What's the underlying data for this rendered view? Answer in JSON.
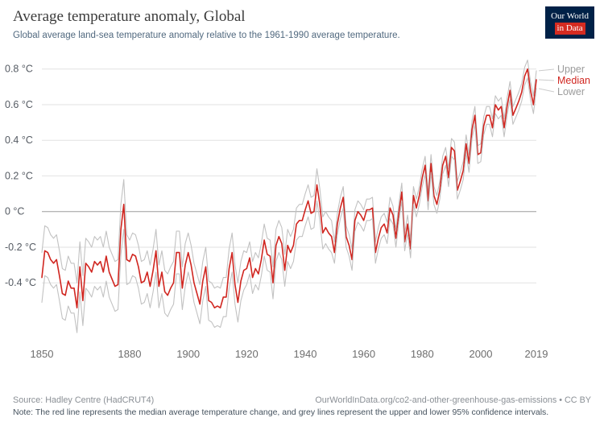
{
  "header": {
    "title": "Average temperature anomaly, Global",
    "subtitle": "Global average land-sea temperature anomaly relative to the 1961-1990 average temperature.",
    "logo": {
      "line1": "Our World",
      "line2": "in Data",
      "bg": "#002147",
      "accent": "#d42b21"
    }
  },
  "footer": {
    "source": "Source: Hadley Centre (HadCRUT4)",
    "attribution": "OurWorldInData.org/co2-and-other-greenhouse-gas-emissions • CC BY",
    "note": "Note: The red line represents the median average temperature change, and grey lines represent the upper and lower 95% confidence intervals."
  },
  "chart_data": {
    "type": "line",
    "title": "Average temperature anomaly, Global",
    "xlabel": "",
    "ylabel": "",
    "grid": true,
    "legend_position": "right",
    "xlim": [
      1850,
      2019
    ],
    "ylim": [
      -0.72,
      0.88
    ],
    "x_ticks": [
      1850,
      1880,
      1900,
      1920,
      1940,
      1960,
      1980,
      2000,
      2019
    ],
    "y_ticks": [
      {
        "value": 0.8,
        "label": "0.8 °C"
      },
      {
        "value": 0.6,
        "label": "0.6 °C"
      },
      {
        "value": 0.4,
        "label": "0.4 °C"
      },
      {
        "value": 0.2,
        "label": "0.2 °C"
      },
      {
        "value": 0,
        "label": "0 °C"
      },
      {
        "value": -0.2,
        "label": "-0.2 °C"
      },
      {
        "value": -0.4,
        "label": "-0.4 °C"
      }
    ],
    "x_start": 1850,
    "series": [
      {
        "name": "Upper",
        "color": "#c2c2c2",
        "label_color": "#9b9b9b",
        "values": [
          -0.23,
          -0.08,
          -0.09,
          -0.13,
          -0.15,
          -0.13,
          -0.22,
          -0.32,
          -0.33,
          -0.25,
          -0.29,
          -0.29,
          -0.4,
          -0.17,
          -0.36,
          -0.15,
          -0.17,
          -0.2,
          -0.14,
          -0.16,
          -0.14,
          -0.2,
          -0.11,
          -0.2,
          -0.24,
          -0.28,
          -0.27,
          0.04,
          0.18,
          -0.13,
          -0.16,
          -0.12,
          -0.13,
          -0.19,
          -0.28,
          -0.27,
          -0.22,
          -0.3,
          -0.21,
          -0.1,
          -0.3,
          -0.22,
          -0.33,
          -0.35,
          -0.31,
          -0.28,
          -0.11,
          -0.11,
          -0.31,
          -0.18,
          -0.12,
          -0.19,
          -0.29,
          -0.35,
          -0.41,
          -0.28,
          -0.2,
          -0.39,
          -0.4,
          -0.43,
          -0.42,
          -0.43,
          -0.37,
          -0.37,
          -0.21,
          -0.12,
          -0.3,
          -0.4,
          -0.28,
          -0.22,
          -0.23,
          -0.17,
          -0.28,
          -0.23,
          -0.26,
          -0.18,
          -0.07,
          -0.15,
          -0.16,
          -0.31,
          -0.1,
          -0.05,
          -0.09,
          -0.24,
          -0.1,
          -0.14,
          -0.1,
          0.02,
          0.04,
          0.04,
          0.1,
          0.15,
          0.08,
          0.09,
          0.24,
          0.13,
          -0.03,
          0,
          -0.03,
          -0.05,
          -0.17,
          -0.01,
          0.08,
          0.14,
          -0.08,
          -0.13,
          -0.21,
          0.01,
          0.06,
          0.04,
          0.01,
          0.07,
          0.07,
          0.08,
          -0.17,
          -0.09,
          -0.03,
          -0.01,
          -0.06,
          0.08,
          0.03,
          -0.1,
          0.04,
          0.16,
          -0.12,
          -0.02,
          -0.16,
          0.14,
          0.07,
          0.14,
          0.24,
          0.31,
          0.11,
          0.32,
          0.14,
          0.09,
          0.17,
          0.31,
          0.36,
          0.24,
          0.41,
          0.39,
          0.17,
          0.22,
          0.28,
          0.43,
          0.32,
          0.51,
          0.59,
          0.37,
          0.38,
          0.53,
          0.59,
          0.59,
          0.52,
          0.65,
          0.62,
          0.64,
          0.52,
          0.64,
          0.73,
          0.59,
          0.63,
          0.67,
          0.72,
          0.81,
          0.85,
          0.73,
          0.65,
          0.79
        ]
      },
      {
        "name": "Median",
        "color": "#d02620",
        "label_color": "#d02620",
        "values": [
          -0.37,
          -0.22,
          -0.23,
          -0.27,
          -0.29,
          -0.27,
          -0.36,
          -0.46,
          -0.47,
          -0.39,
          -0.43,
          -0.43,
          -0.54,
          -0.31,
          -0.5,
          -0.29,
          -0.31,
          -0.34,
          -0.28,
          -0.3,
          -0.28,
          -0.34,
          -0.25,
          -0.34,
          -0.38,
          -0.42,
          -0.41,
          -0.1,
          0.04,
          -0.27,
          -0.28,
          -0.24,
          -0.25,
          -0.31,
          -0.4,
          -0.39,
          -0.34,
          -0.42,
          -0.33,
          -0.22,
          -0.42,
          -0.34,
          -0.45,
          -0.47,
          -0.43,
          -0.4,
          -0.23,
          -0.23,
          -0.43,
          -0.3,
          -0.23,
          -0.3,
          -0.4,
          -0.46,
          -0.52,
          -0.39,
          -0.31,
          -0.5,
          -0.51,
          -0.54,
          -0.53,
          -0.54,
          -0.48,
          -0.48,
          -0.32,
          -0.23,
          -0.41,
          -0.51,
          -0.39,
          -0.33,
          -0.32,
          -0.26,
          -0.37,
          -0.32,
          -0.35,
          -0.27,
          -0.16,
          -0.24,
          -0.25,
          -0.4,
          -0.19,
          -0.14,
          -0.18,
          -0.33,
          -0.19,
          -0.23,
          -0.19,
          -0.07,
          -0.05,
          -0.05,
          0.01,
          0.06,
          -0.01,
          0,
          0.15,
          0.04,
          -0.12,
          -0.09,
          -0.12,
          -0.14,
          -0.23,
          -0.07,
          0.02,
          0.08,
          -0.14,
          -0.19,
          -0.27,
          -0.05,
          0,
          -0.02,
          -0.05,
          0.01,
          0.01,
          0.02,
          -0.23,
          -0.15,
          -0.09,
          -0.07,
          -0.12,
          0.02,
          -0.02,
          -0.15,
          -0.01,
          0.11,
          -0.17,
          -0.07,
          -0.21,
          0.09,
          0.02,
          0.09,
          0.19,
          0.26,
          0.06,
          0.27,
          0.09,
          0.04,
          0.12,
          0.26,
          0.31,
          0.19,
          0.36,
          0.34,
          0.12,
          0.17,
          0.23,
          0.38,
          0.27,
          0.46,
          0.54,
          0.32,
          0.33,
          0.48,
          0.54,
          0.54,
          0.47,
          0.6,
          0.57,
          0.59,
          0.47,
          0.59,
          0.68,
          0.54,
          0.58,
          0.62,
          0.67,
          0.76,
          0.8,
          0.68,
          0.6,
          0.74
        ]
      },
      {
        "name": "Lower",
        "color": "#c2c2c2",
        "label_color": "#9b9b9b",
        "values": [
          -0.51,
          -0.36,
          -0.37,
          -0.41,
          -0.43,
          -0.41,
          -0.5,
          -0.6,
          -0.61,
          -0.53,
          -0.57,
          -0.57,
          -0.68,
          -0.45,
          -0.64,
          -0.43,
          -0.45,
          -0.48,
          -0.42,
          -0.44,
          -0.42,
          -0.48,
          -0.39,
          -0.48,
          -0.52,
          -0.56,
          -0.55,
          -0.24,
          -0.1,
          -0.41,
          -0.4,
          -0.36,
          -0.37,
          -0.43,
          -0.52,
          -0.51,
          -0.46,
          -0.54,
          -0.45,
          -0.34,
          -0.54,
          -0.46,
          -0.57,
          -0.59,
          -0.55,
          -0.52,
          -0.35,
          -0.35,
          -0.55,
          -0.42,
          -0.34,
          -0.41,
          -0.51,
          -0.57,
          -0.63,
          -0.5,
          -0.42,
          -0.61,
          -0.62,
          -0.65,
          -0.64,
          -0.65,
          -0.59,
          -0.59,
          -0.43,
          -0.34,
          -0.52,
          -0.62,
          -0.5,
          -0.44,
          -0.41,
          -0.35,
          -0.46,
          -0.41,
          -0.44,
          -0.36,
          -0.25,
          -0.33,
          -0.34,
          -0.49,
          -0.28,
          -0.23,
          -0.27,
          -0.42,
          -0.28,
          -0.32,
          -0.28,
          -0.16,
          -0.14,
          -0.14,
          -0.08,
          -0.03,
          -0.1,
          -0.09,
          0.06,
          -0.05,
          -0.21,
          -0.18,
          -0.21,
          -0.23,
          -0.29,
          -0.13,
          -0.04,
          0.02,
          -0.2,
          -0.25,
          -0.33,
          -0.11,
          -0.06,
          -0.08,
          -0.11,
          -0.05,
          -0.05,
          -0.04,
          -0.29,
          -0.21,
          -0.15,
          -0.13,
          -0.18,
          -0.04,
          -0.07,
          -0.2,
          -0.06,
          0.06,
          -0.22,
          -0.12,
          -0.26,
          0.04,
          -0.03,
          0.04,
          0.14,
          0.21,
          0.01,
          0.22,
          0.04,
          -0.01,
          0.07,
          0.21,
          0.26,
          0.14,
          0.31,
          0.29,
          0.07,
          0.12,
          0.18,
          0.33,
          0.22,
          0.41,
          0.49,
          0.27,
          0.28,
          0.43,
          0.49,
          0.49,
          0.42,
          0.55,
          0.52,
          0.54,
          0.42,
          0.54,
          0.63,
          0.49,
          0.53,
          0.57,
          0.62,
          0.71,
          0.75,
          0.63,
          0.55,
          0.69
        ]
      }
    ]
  }
}
